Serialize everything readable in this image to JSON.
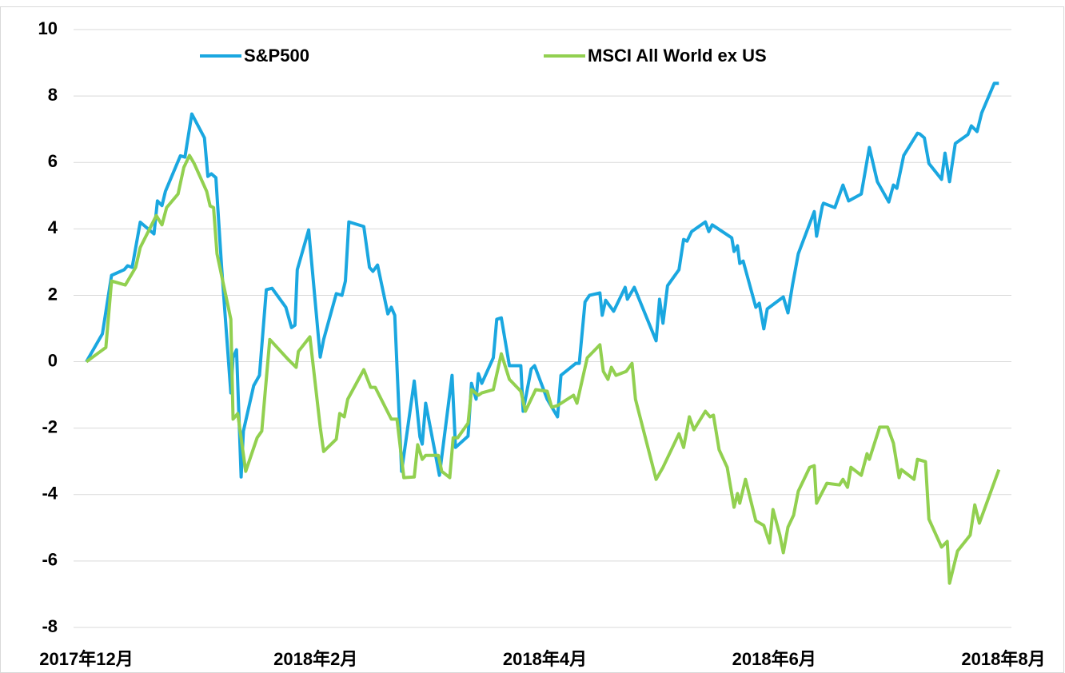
{
  "chart_data": {
    "type": "line",
    "xlim": [
      0,
      8
    ],
    "xticks": [
      {
        "value": 0,
        "label": "2017年12月"
      },
      {
        "value": 2,
        "label": "2018年2月"
      },
      {
        "value": 4,
        "label": "2018年4月"
      },
      {
        "value": 6,
        "label": "2018年6月"
      },
      {
        "value": 8,
        "label": "2018年8月"
      }
    ],
    "ylim": [
      -8,
      10
    ],
    "yticks": [
      -8,
      -6,
      -4,
      -2,
      0,
      2,
      4,
      6,
      8,
      10
    ],
    "negative_tick_color": "#ff0000",
    "grid": true,
    "legend": "top",
    "series": [
      {
        "name": "S&P500",
        "color": "#1aa7e0",
        "x": [
          0,
          0.14,
          0.22,
          0.33,
          0.36,
          0.4,
          0.47,
          0.59,
          0.62,
          0.66,
          0.69,
          0.82,
          0.86,
          0.92,
          1.03,
          1.06,
          1.09,
          1.13,
          1.18,
          1.26,
          1.28,
          1.31,
          1.35,
          1.37,
          1.46,
          1.51,
          1.57,
          1.62,
          1.74,
          1.79,
          1.82,
          1.84,
          1.94,
          2.04,
          2.07,
          2.18,
          2.23,
          2.26,
          2.29,
          2.42,
          2.47,
          2.5,
          2.54,
          2.63,
          2.66,
          2.69,
          2.75,
          2.86,
          2.91,
          2.93,
          2.96,
          3.08,
          3.19,
          3.22,
          3.33,
          3.36,
          3.4,
          3.42,
          3.45,
          3.55,
          3.58,
          3.62,
          3.69,
          3.79,
          3.81,
          3.88,
          3.91,
          4.02,
          4.11,
          4.14,
          4.27,
          4.3,
          4.35,
          4.39,
          4.48,
          4.5,
          4.53,
          4.6,
          4.7,
          4.72,
          4.78,
          4.97,
          5.0,
          5.03,
          5.07,
          5.17,
          5.21,
          5.24,
          5.28,
          5.4,
          5.43,
          5.46,
          5.63,
          5.65,
          5.68,
          5.7,
          5.73,
          5.84,
          5.87,
          5.91,
          5.94,
          6.08,
          6.12,
          6.16,
          6.21,
          6.35,
          6.37,
          6.42,
          6.43,
          6.53,
          6.6,
          6.65,
          6.76,
          6.83,
          6.9,
          7.0,
          7.04,
          7.07,
          7.13,
          7.25,
          7.27,
          7.31,
          7.35,
          7.46,
          7.49,
          7.53,
          7.58,
          7.69,
          7.72,
          7.77,
          7.81,
          7.92,
          7.96
        ],
        "values": [
          0,
          0.84,
          2.6,
          2.77,
          2.89,
          2.84,
          4.2,
          3.85,
          4.84,
          4.7,
          5.13,
          6.2,
          6.16,
          7.46,
          6.74,
          5.58,
          5.66,
          5.54,
          2.84,
          -0.94,
          0.12,
          0.36,
          -3.47,
          -2.09,
          -0.72,
          -0.41,
          2.17,
          2.21,
          1.64,
          1.03,
          1.1,
          2.77,
          3.97,
          0.14,
          0.67,
          2.05,
          2.0,
          2.43,
          4.21,
          4.07,
          2.84,
          2.72,
          2.91,
          1.44,
          1.64,
          1.4,
          -3.3,
          -0.58,
          -2.26,
          -2.48,
          -1.25,
          -3.42,
          -0.41,
          -2.58,
          -2.24,
          -0.65,
          -1.13,
          -0.36,
          -0.65,
          0.12,
          1.28,
          1.32,
          -0.12,
          -0.12,
          -1.49,
          -0.22,
          -0.12,
          -1.13,
          -1.66,
          -0.41,
          -0.05,
          -0.05,
          1.8,
          2.0,
          2.07,
          1.4,
          1.85,
          1.52,
          2.24,
          1.88,
          2.24,
          0.63,
          1.88,
          1.16,
          2.29,
          2.77,
          3.68,
          3.63,
          3.92,
          4.21,
          3.92,
          4.12,
          3.73,
          3.32,
          3.49,
          2.96,
          3.03,
          1.64,
          1.76,
          0.99,
          1.59,
          1.95,
          1.47,
          2.31,
          3.25,
          4.52,
          3.78,
          4.69,
          4.77,
          4.64,
          5.32,
          4.84,
          5.05,
          6.45,
          5.42,
          4.81,
          5.32,
          5.22,
          6.21,
          6.88,
          6.86,
          6.74,
          5.97,
          5.49,
          6.28,
          5.42,
          6.57,
          6.84,
          7.1,
          6.93,
          7.49,
          8.38,
          8.38
        ]
      },
      {
        "name": "MSCI All World ex US",
        "color": "#92d050",
        "x": [
          0,
          0.17,
          0.22,
          0.34,
          0.43,
          0.47,
          0.61,
          0.66,
          0.7,
          0.8,
          0.85,
          0.9,
          0.94,
          1.05,
          1.08,
          1.11,
          1.14,
          1.26,
          1.28,
          1.32,
          1.39,
          1.49,
          1.53,
          1.6,
          1.76,
          1.83,
          1.85,
          1.95,
          2.04,
          2.07,
          2.18,
          2.21,
          2.25,
          2.28,
          2.42,
          2.48,
          2.52,
          2.66,
          2.71,
          2.77,
          2.86,
          2.89,
          2.93,
          2.96,
          3.07,
          3.1,
          3.17,
          3.2,
          3.24,
          3.33,
          3.36,
          3.42,
          3.45,
          3.55,
          3.62,
          3.69,
          3.79,
          3.83,
          3.92,
          4.02,
          4.06,
          4.11,
          4.25,
          4.28,
          4.37,
          4.48,
          4.51,
          4.55,
          4.58,
          4.62,
          4.71,
          4.76,
          4.79,
          4.97,
          5.03,
          5.17,
          5.21,
          5.26,
          5.3,
          5.4,
          5.44,
          5.47,
          5.52,
          5.59,
          5.65,
          5.68,
          5.7,
          5.75,
          5.84,
          5.91,
          5.96,
          5.99,
          6.05,
          6.08,
          6.12,
          6.17,
          6.21,
          6.31,
          6.35,
          6.37,
          6.46,
          6.57,
          6.6,
          6.64,
          6.67,
          6.76,
          6.81,
          6.83,
          6.92,
          6.99,
          7.04,
          7.09,
          7.11,
          7.22,
          7.25,
          7.32,
          7.35,
          7.46,
          7.51,
          7.53,
          7.6,
          7.71,
          7.75,
          7.79,
          7.96
        ],
        "values": [
          0,
          0.43,
          2.43,
          2.31,
          2.84,
          3.44,
          4.4,
          4.12,
          4.64,
          5.05,
          5.85,
          6.21,
          5.97,
          5.13,
          4.69,
          4.64,
          3.25,
          1.28,
          -1.73,
          -1.56,
          -3.3,
          -2.29,
          -2.09,
          0.67,
          0.07,
          -0.17,
          0.31,
          0.75,
          -1.97,
          -2.7,
          -2.33,
          -1.56,
          -1.66,
          -1.13,
          -0.24,
          -0.77,
          -0.77,
          -1.73,
          -1.73,
          -3.49,
          -3.47,
          -2.5,
          -2.94,
          -2.82,
          -2.82,
          -3.3,
          -3.49,
          -2.29,
          -2.29,
          -1.85,
          -0.84,
          -1.01,
          -0.94,
          -0.84,
          0.24,
          -0.53,
          -0.89,
          -1.49,
          -0.84,
          -0.89,
          -1.37,
          -1.32,
          -1.01,
          -1.25,
          0.12,
          0.51,
          -0.29,
          -0.53,
          -0.17,
          -0.41,
          -0.29,
          -0.05,
          -1.13,
          -3.54,
          -3.18,
          -2.17,
          -2.58,
          -1.66,
          -2.05,
          -1.49,
          -1.66,
          -1.61,
          -2.65,
          -3.18,
          -4.38,
          -3.97,
          -4.26,
          -3.54,
          -4.79,
          -4.93,
          -5.46,
          -4.45,
          -5.22,
          -5.75,
          -4.98,
          -4.62,
          -3.9,
          -3.18,
          -3.13,
          -4.26,
          -3.66,
          -3.71,
          -3.54,
          -3.78,
          -3.18,
          -3.42,
          -2.77,
          -2.94,
          -1.97,
          -1.97,
          -2.45,
          -3.49,
          -3.25,
          -3.54,
          -2.94,
          -3.01,
          -4.74,
          -5.58,
          -5.41,
          -6.67,
          -5.7,
          -5.22,
          -4.31,
          -4.86,
          -3.25
        ]
      }
    ]
  }
}
